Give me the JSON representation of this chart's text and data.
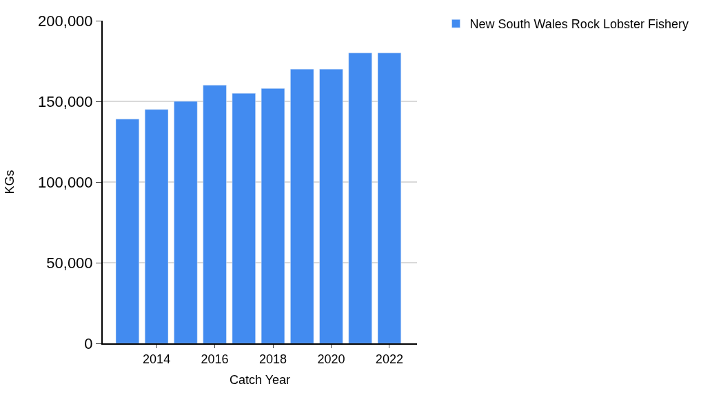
{
  "chart_data": {
    "type": "bar",
    "xlabel": "Catch Year",
    "ylabel": "KGs",
    "x": [
      2013,
      2014,
      2015,
      2016,
      2017,
      2018,
      2019,
      2020,
      2021,
      2022
    ],
    "series": [
      {
        "name": "New South Wales Rock Lobster Fishery",
        "color": "#428bf0",
        "values": [
          139000,
          145000,
          150000,
          160000,
          155000,
          158000,
          170000,
          170000,
          180000,
          180000
        ]
      }
    ],
    "xlim": [
      2012.15,
      2022.95
    ],
    "xticks": [
      2014,
      2016,
      2018,
      2020,
      2022
    ],
    "ylim": [
      0,
      200000
    ],
    "yticks": [
      {
        "value": 0,
        "label": "0"
      },
      {
        "value": 50000,
        "label": "50,000"
      },
      {
        "value": 100000,
        "label": "100,000"
      },
      {
        "value": 150000,
        "label": "150,000"
      },
      {
        "value": 200000,
        "label": "200,000"
      }
    ],
    "grid": "y",
    "legend": "top right"
  }
}
